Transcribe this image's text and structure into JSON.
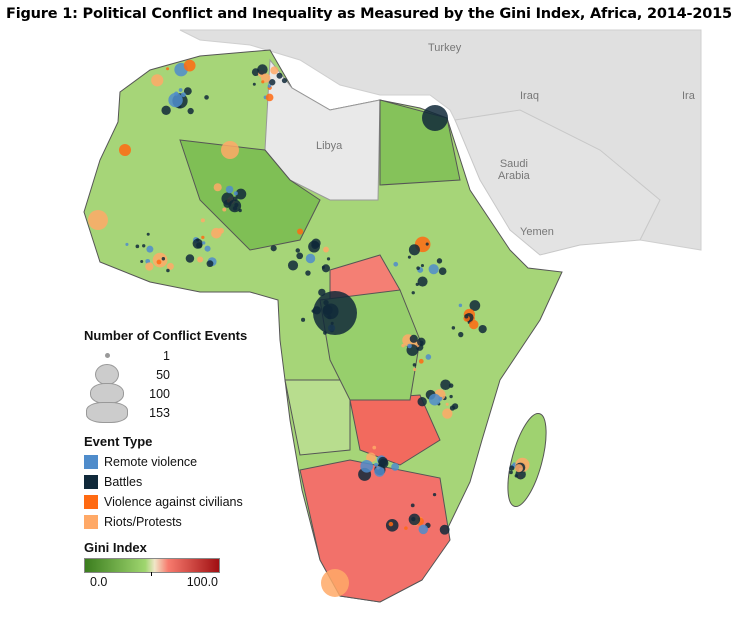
{
  "title": "Figure 1: Political Conflict and Inequality as Measured by the Gini Index, Africa, 2014-2015",
  "geo_labels": {
    "turkey": "Turkey",
    "iraq": "Iraq",
    "iran": "Ira",
    "libya": "Libya",
    "saudi": "Saudi\nArabia",
    "yemen": "Yemen"
  },
  "legend_size": {
    "title": "Number of Conflict Events",
    "items": [
      "1",
      "50",
      "100",
      "153"
    ]
  },
  "legend_type": {
    "title": "Event Type",
    "items": [
      {
        "label": "Remote violence",
        "color": "#4f8ccb"
      },
      {
        "label": "Battles",
        "color": "#10293a"
      },
      {
        "label": "Violence against civilians",
        "color": "#ff6a12"
      },
      {
        "label": "Riots/Protests",
        "color": "#ffa967"
      }
    ]
  },
  "legend_gini": {
    "title": "Gini Index",
    "min": "0.0",
    "max": "100.0"
  }
}
